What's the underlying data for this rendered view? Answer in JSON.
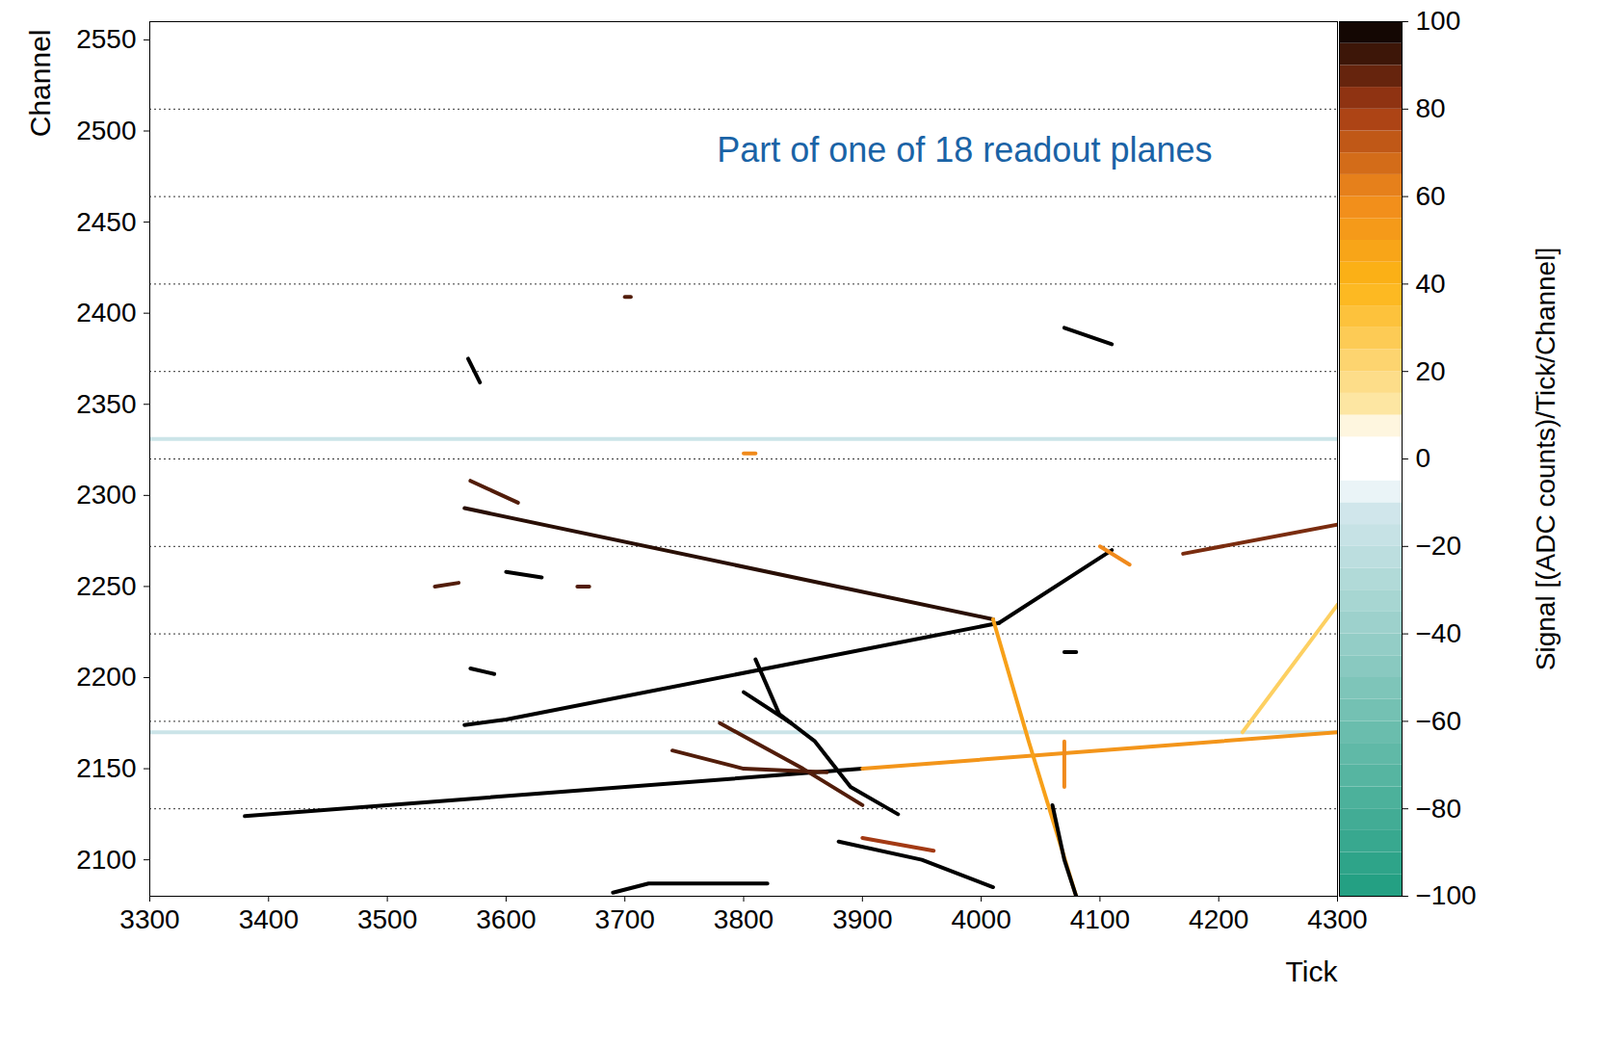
{
  "chart_data": {
    "type": "heatmap",
    "annotation": "Part of one of 18 readout planes",
    "xlabel": "Tick",
    "ylabel": "Channel",
    "xlim": [
      3300,
      4300
    ],
    "xticks": [
      3300,
      3400,
      3500,
      3600,
      3700,
      3800,
      3900,
      4000,
      4100,
      4200,
      4300
    ],
    "ylim": [
      2080,
      2560
    ],
    "yticks": [
      2100,
      2150,
      2200,
      2250,
      2300,
      2350,
      2400,
      2450,
      2500,
      2550
    ],
    "colorbar": {
      "label": "Signal [(ADC counts)/Tick/Channel]",
      "range": [
        -100,
        100
      ],
      "ticks": [
        -100,
        -80,
        -60,
        -40,
        -20,
        0,
        20,
        40,
        60,
        80,
        100
      ]
    },
    "plane_boundaries": [
      2128,
      2176,
      2224,
      2272,
      2320,
      2368,
      2416,
      2464,
      2512
    ],
    "tracks": [
      {
        "x": [
          3300,
          4300
        ],
        "y": [
          2331,
          2331
        ],
        "signal": -15
      },
      {
        "x": [
          3300,
          4300
        ],
        "y": [
          2170,
          2170
        ],
        "signal": -15
      },
      {
        "x": [
          3565,
          4010
        ],
        "y": [
          2293,
          2232
        ],
        "signal": 95
      },
      {
        "x": [
          3565,
          3600,
          4015
        ],
        "y": [
          2174,
          2177,
          2230
        ],
        "signal": 100
      },
      {
        "x": [
          4015,
          4110
        ],
        "y": [
          2230,
          2270
        ],
        "signal": 100
      },
      {
        "x": [
          3380,
          3900
        ],
        "y": [
          2124,
          2150
        ],
        "signal": 100
      },
      {
        "x": [
          3900,
          4300
        ],
        "y": [
          2150,
          2170
        ],
        "signal": 55
      },
      {
        "x": [
          4010,
          4040,
          4080
        ],
        "y": [
          2232,
          2165,
          2080
        ],
        "signal": 50
      },
      {
        "x": [
          4170,
          4300
        ],
        "y": [
          2268,
          2284
        ],
        "signal": 85
      },
      {
        "x": [
          4220,
          4300
        ],
        "y": [
          2170,
          2240
        ],
        "signal": 25
      },
      {
        "x": [
          3810,
          3830,
          3860,
          3890,
          3930
        ],
        "y": [
          2210,
          2180,
          2165,
          2140,
          2125
        ],
        "signal": 100
      },
      {
        "x": [
          3800,
          3840
        ],
        "y": [
          2192,
          2175
        ],
        "signal": 100
      },
      {
        "x": [
          3740,
          3800,
          3870
        ],
        "y": [
          2160,
          2150,
          2148
        ],
        "signal": 90
      },
      {
        "x": [
          3780,
          3850,
          3900
        ],
        "y": [
          2175,
          2150,
          2130
        ],
        "signal": 90
      },
      {
        "x": [
          3690,
          3720,
          3820
        ],
        "y": [
          2082,
          2087,
          2087
        ],
        "signal": 100
      },
      {
        "x": [
          3880,
          3950,
          4010
        ],
        "y": [
          2110,
          2100,
          2085
        ],
        "signal": 100
      },
      {
        "x": [
          3900,
          3960
        ],
        "y": [
          2112,
          2105
        ],
        "signal": 80
      },
      {
        "x": [
          4060,
          4070,
          4080
        ],
        "y": [
          2130,
          2100,
          2080
        ],
        "signal": 100
      },
      {
        "x": [
          4070,
          4070
        ],
        "y": [
          2165,
          2140
        ],
        "signal": 60
      },
      {
        "x": [
          4070,
          4110
        ],
        "y": [
          2392,
          2383
        ],
        "signal": 100
      },
      {
        "x": [
          3568,
          3578
        ],
        "y": [
          2375,
          2362
        ],
        "signal": 100
      },
      {
        "x": [
          3570,
          3610
        ],
        "y": [
          2308,
          2296
        ],
        "signal": 90
      },
      {
        "x": [
          3600,
          3630
        ],
        "y": [
          2258,
          2255
        ],
        "signal": 100
      },
      {
        "x": [
          3540,
          3560
        ],
        "y": [
          2250,
          2252
        ],
        "signal": 90
      },
      {
        "x": [
          3700,
          3705
        ],
        "y": [
          2409,
          2409
        ],
        "signal": 90
      },
      {
        "x": [
          3660,
          3670
        ],
        "y": [
          2250,
          2250
        ],
        "signal": 90
      },
      {
        "x": [
          3800,
          3810
        ],
        "y": [
          2323,
          2323
        ],
        "signal": 60
      },
      {
        "x": [
          4070,
          4080
        ],
        "y": [
          2214,
          2214
        ],
        "signal": 100
      },
      {
        "x": [
          3570,
          3590
        ],
        "y": [
          2205,
          2202
        ],
        "signal": 100
      },
      {
        "x": [
          4100,
          4125
        ],
        "y": [
          2272,
          2262
        ],
        "signal": 60
      }
    ]
  }
}
